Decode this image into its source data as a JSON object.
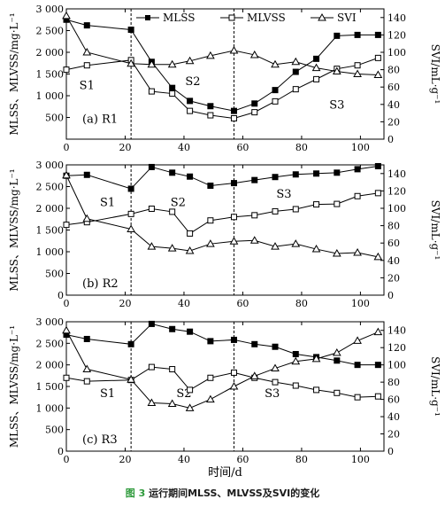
{
  "figure": {
    "caption_prefix": "图 3",
    "caption_text": "运行期间MLSS、MLVSS及SVI的变化",
    "caption_prefix_color": "#2e9a3b"
  },
  "chart_data": [
    {
      "type": "line",
      "panel_label": "(a) R1",
      "ylabel_left": "MLSS、MLVSS/mg·L⁻¹",
      "ylabel_right": "SVI/mL·g⁻¹",
      "xlabel": "",
      "xlim": [
        0,
        108
      ],
      "ylim_left": [
        0,
        3000
      ],
      "ylim_right": [
        0,
        150
      ],
      "x_ticks": [
        0,
        20,
        40,
        60,
        80,
        100
      ],
      "y_left_ticks": [
        500,
        1000,
        1500,
        2000,
        2500,
        3000
      ],
      "y_left_tick_labels": [
        "500",
        "1 000",
        "1 500",
        "2 000",
        "2 500",
        "3 000"
      ],
      "y_right_ticks": [
        0,
        20,
        40,
        60,
        80,
        100,
        120,
        140
      ],
      "dividers": [
        22,
        57
      ],
      "stages": [
        {
          "label": "S1",
          "x": 7,
          "y": 1150
        },
        {
          "label": "S2",
          "x": 43,
          "y": 1250
        },
        {
          "label": "S3",
          "x": 92,
          "y": 700
        }
      ],
      "legend": {
        "placement": "top",
        "entries": [
          "MLSS",
          "MLVSS",
          "SVI"
        ]
      },
      "series": [
        {
          "name": "MLSS",
          "axis": "left",
          "marker": "filled-square",
          "x": [
            0,
            7,
            22,
            29,
            36,
            42,
            49,
            57,
            64,
            71,
            78,
            85,
            92,
            99,
            106
          ],
          "values": [
            2750,
            2620,
            2520,
            1780,
            1180,
            880,
            760,
            650,
            820,
            1130,
            1550,
            1850,
            2380,
            2400,
            2400
          ]
        },
        {
          "name": "MLVSS",
          "axis": "left",
          "marker": "open-square",
          "x": [
            0,
            7,
            22,
            29,
            36,
            42,
            49,
            57,
            64,
            71,
            78,
            85,
            92,
            99,
            106
          ],
          "values": [
            1600,
            1700,
            1820,
            1100,
            1050,
            650,
            550,
            480,
            620,
            870,
            1150,
            1380,
            1620,
            1700,
            1870
          ]
        },
        {
          "name": "SVI",
          "axis": "right",
          "marker": "open-triangle",
          "x": [
            0,
            7,
            22,
            29,
            36,
            42,
            49,
            57,
            64,
            71,
            78,
            85,
            92,
            99,
            106
          ],
          "values": [
            142,
            100,
            87,
            86,
            86,
            90,
            96,
            102,
            97,
            86,
            89,
            82,
            78,
            75,
            74
          ]
        }
      ]
    },
    {
      "type": "line",
      "panel_label": "(b) R2",
      "ylabel_left": "MLSS、MLVSS/mg·L⁻¹",
      "ylabel_right": "SVI/mL·g⁻¹",
      "xlabel": "",
      "xlim": [
        0,
        108
      ],
      "ylim_left": [
        0,
        3000
      ],
      "ylim_right": [
        0,
        150
      ],
      "x_ticks": [
        0,
        20,
        40,
        60,
        80,
        100
      ],
      "y_left_ticks": [
        0,
        500,
        1000,
        1500,
        2000,
        2500,
        3000
      ],
      "y_left_tick_labels": [
        "0",
        "500",
        "1 000",
        "1 500",
        "2 000",
        "2 500",
        "3 000"
      ],
      "y_right_ticks": [
        0,
        20,
        40,
        60,
        80,
        100,
        120,
        140
      ],
      "dividers": [
        22,
        57
      ],
      "stages": [
        {
          "label": "S1",
          "x": 14,
          "y": 2050
        },
        {
          "label": "S2",
          "x": 38,
          "y": 2050
        },
        {
          "label": "S3",
          "x": 74,
          "y": 2250
        }
      ],
      "series": [
        {
          "name": "MLSS",
          "axis": "left",
          "marker": "filled-square",
          "x": [
            0,
            7,
            22,
            29,
            36,
            42,
            49,
            57,
            64,
            71,
            78,
            85,
            92,
            99,
            106
          ],
          "values": [
            2750,
            2770,
            2450,
            2950,
            2820,
            2730,
            2520,
            2580,
            2650,
            2720,
            2780,
            2800,
            2820,
            2900,
            2970
          ]
        },
        {
          "name": "MLVSS",
          "axis": "left",
          "marker": "open-square",
          "x": [
            0,
            7,
            22,
            29,
            36,
            42,
            49,
            57,
            64,
            71,
            78,
            85,
            92,
            99,
            106
          ],
          "values": [
            1620,
            1680,
            1870,
            1990,
            1920,
            1420,
            1720,
            1800,
            1840,
            1930,
            1980,
            2090,
            2100,
            2280,
            2350
          ]
        },
        {
          "name": "SVI",
          "axis": "right",
          "marker": "open-triangle",
          "x": [
            0,
            7,
            22,
            29,
            36,
            42,
            49,
            57,
            64,
            71,
            78,
            85,
            92,
            99,
            106
          ],
          "values": [
            138,
            88,
            76,
            56,
            54,
            51,
            59,
            62,
            63,
            56,
            59,
            53,
            48,
            49,
            44
          ]
        }
      ]
    },
    {
      "type": "line",
      "panel_label": "(c) R3",
      "ylabel_left": "MLSS、MLVSS/mg·L⁻¹",
      "ylabel_right": "SVI/mL·g⁻¹",
      "xlabel": "时间/d",
      "xlim": [
        0,
        108
      ],
      "ylim_left": [
        0,
        3000
      ],
      "ylim_right": [
        0,
        150
      ],
      "x_ticks": [
        0,
        20,
        40,
        60,
        80,
        100
      ],
      "y_left_ticks": [
        0,
        500,
        1000,
        1500,
        2000,
        2500,
        3000
      ],
      "y_left_tick_labels": [
        "0",
        "500",
        "1 000",
        "1 500",
        "2 000",
        "2 500",
        "3 000"
      ],
      "y_right_ticks": [
        0,
        20,
        40,
        60,
        80,
        100,
        120,
        140
      ],
      "dividers": [
        22,
        57
      ],
      "stages": [
        {
          "label": "S1",
          "x": 14,
          "y": 1250
        },
        {
          "label": "S2",
          "x": 40,
          "y": 1250
        },
        {
          "label": "S3",
          "x": 70,
          "y": 1250
        }
      ],
      "series": [
        {
          "name": "MLSS",
          "axis": "left",
          "marker": "filled-square",
          "x": [
            0,
            7,
            22,
            29,
            36,
            42,
            49,
            57,
            64,
            71,
            78,
            85,
            92,
            99,
            106
          ],
          "values": [
            2700,
            2600,
            2480,
            2950,
            2830,
            2770,
            2550,
            2580,
            2480,
            2420,
            2250,
            2180,
            2100,
            2000,
            2000
          ]
        },
        {
          "name": "MLVSS",
          "axis": "left",
          "marker": "open-square",
          "x": [
            0,
            7,
            22,
            29,
            36,
            42,
            49,
            57,
            64,
            71,
            78,
            85,
            92,
            99,
            106
          ],
          "values": [
            1700,
            1620,
            1650,
            1950,
            1900,
            1420,
            1700,
            1820,
            1700,
            1600,
            1520,
            1420,
            1350,
            1250,
            1270
          ]
        },
        {
          "name": "SVI",
          "axis": "right",
          "marker": "open-triangle",
          "x": [
            0,
            7,
            22,
            29,
            36,
            42,
            49,
            57,
            64,
            71,
            78,
            85,
            92,
            99,
            106
          ],
          "values": [
            140,
            95,
            83,
            56,
            55,
            50,
            60,
            75,
            87,
            96,
            104,
            107,
            114,
            128,
            138
          ]
        }
      ]
    }
  ]
}
